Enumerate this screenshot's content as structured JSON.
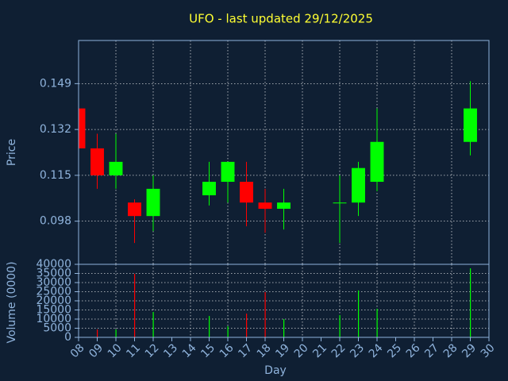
{
  "chart_data": [
    {
      "type": "candlestick",
      "title": "UFO - last updated 29/12/2025",
      "ylabel": "Price",
      "x": [
        8,
        9,
        10,
        11,
        12,
        15,
        16,
        17,
        18,
        19,
        22,
        23,
        24,
        29
      ],
      "open": [
        0.1398,
        0.125,
        0.115,
        0.1049,
        0.0999,
        0.1076,
        0.1126,
        0.1126,
        0.1049,
        0.1026,
        0.1046,
        0.1049,
        0.1126,
        0.1274
      ],
      "high": [
        0.1398,
        0.1304,
        0.1304,
        0.1061,
        0.115,
        0.12,
        0.12,
        0.12,
        0.11,
        0.11,
        0.115,
        0.12,
        0.1398,
        0.1499
      ],
      "low": [
        0.125,
        0.11,
        0.11,
        0.0899,
        0.0943,
        0.1038,
        0.1049,
        0.0961,
        0.0937,
        0.0949,
        0.0899,
        0.0999,
        0.1091,
        0.1224
      ],
      "close": [
        0.125,
        0.115,
        0.12,
        0.0999,
        0.11,
        0.1126,
        0.12,
        0.1049,
        0.1026,
        0.1049,
        0.1049,
        0.1177,
        0.1274,
        0.1398
      ],
      "up_color": "#00ff00",
      "down_color": "#ff0000",
      "xlim": [
        8,
        30
      ],
      "ylim": [
        0.082,
        0.165
      ],
      "yticks": [
        0.098,
        0.115,
        0.132,
        0.149
      ],
      "grid": true
    },
    {
      "type": "bar",
      "ylabel": "Volume (0000)",
      "xlabel": "Day",
      "x": [
        8,
        9,
        10,
        11,
        12,
        15,
        16,
        17,
        18,
        19,
        22,
        23,
        24,
        29
      ],
      "values": [
        0,
        4300,
        4300,
        34800,
        13900,
        11700,
        6100,
        13000,
        24800,
        10000,
        12200,
        25700,
        15700,
        37800
      ],
      "colors": [
        "#ff0000",
        "#ff0000",
        "#00ff00",
        "#ff0000",
        "#00ff00",
        "#00ff00",
        "#00ff00",
        "#ff0000",
        "#ff0000",
        "#00ff00",
        "#00ff00",
        "#00ff00",
        "#00ff00",
        "#00ff00"
      ],
      "xlim": [
        8,
        30
      ],
      "xticks": [
        {
          "value": 8,
          "label": "08"
        },
        {
          "value": 9,
          "label": "09"
        },
        10,
        11,
        12,
        13,
        14,
        15,
        16,
        17,
        18,
        19,
        20,
        21,
        22,
        23,
        24,
        25,
        26,
        27,
        28,
        29,
        30
      ],
      "ylim": [
        0,
        40000
      ],
      "yticks": [
        0,
        5000,
        10000,
        15000,
        20000,
        25000,
        30000,
        35000,
        40000
      ],
      "grid": true
    }
  ]
}
